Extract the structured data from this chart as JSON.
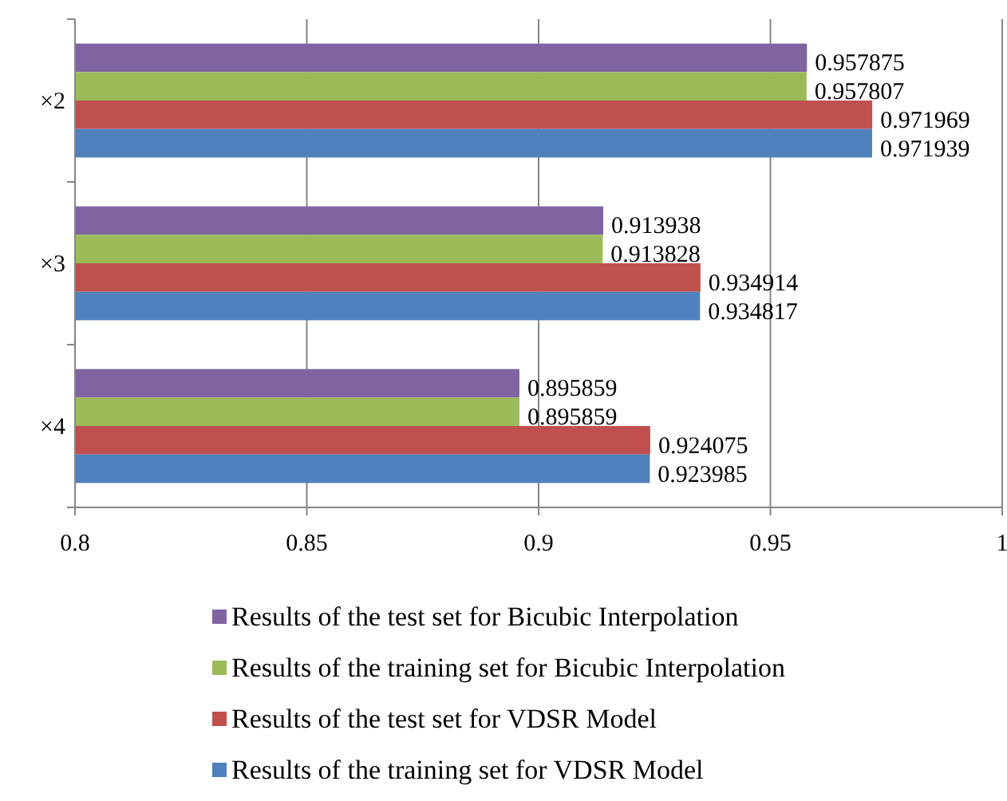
{
  "chart_data": {
    "type": "bar",
    "orientation": "horizontal",
    "categories": [
      "×2",
      "×3",
      "×4"
    ],
    "series": [
      {
        "name": "Results of the test set for Bicubic Interpolation",
        "color": "#8064a2",
        "values": [
          0.957875,
          0.913938,
          0.895859
        ]
      },
      {
        "name": "Results of the training set for Bicubic Interpolation",
        "color": "#9bbb59",
        "values": [
          0.957807,
          0.913828,
          0.895859
        ]
      },
      {
        "name": "Results of the test set for VDSR Model",
        "color": "#c0504d",
        "values": [
          0.971969,
          0.934914,
          0.924075
        ]
      },
      {
        "name": "Results of the training set for VDSR Model",
        "color": "#4f81bd",
        "values": [
          0.971939,
          0.934817,
          0.923985
        ]
      }
    ],
    "xlim": [
      0.8,
      1
    ],
    "xticks": [
      0.8,
      0.85,
      0.9,
      0.95,
      1
    ],
    "grid": "x",
    "legend": "bottom",
    "data_labels": true
  }
}
